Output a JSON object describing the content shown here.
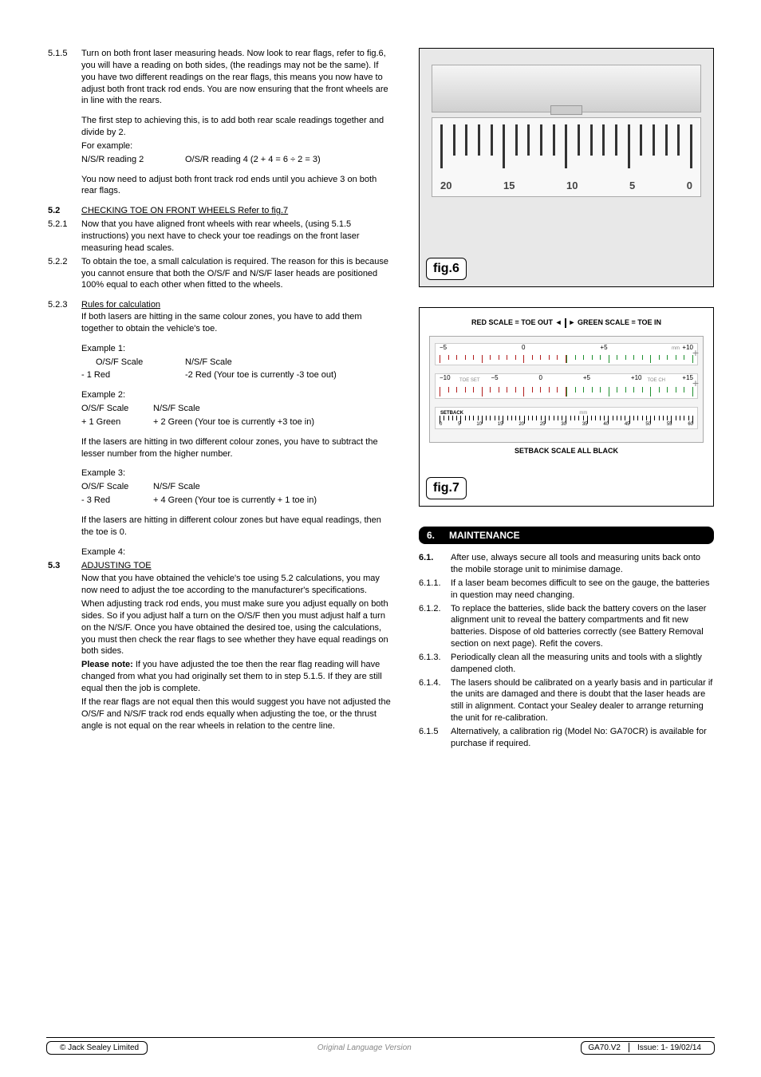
{
  "left": {
    "s515": {
      "num": "5.1.5",
      "body": "Turn on both front laser measuring heads. Now look to rear flags, refer to fig.6,  you will have a reading on both sides, (the readings may not be the same). If you have two different readings on the rear flags, this means you now have to adjust both front track rod ends. You are now ensuring that the front wheels are in line with the rears."
    },
    "s515b": "The first step to achieving this, is to add both rear scale readings together and divide by 2.",
    "s515c": "For example:",
    "s515d_left": "N/S/R reading 2",
    "s515d_right": "O/S/R reading 4 (2 + 4 = 6 ÷ 2 = 3)",
    "s515e": "You now need to adjust both front track rod ends until you achieve 3 on both rear flags.",
    "s52": {
      "num": "5.2",
      "title": "CHECKING TOE ON FRONT WHEELS Refer to fig.7"
    },
    "s521": {
      "num": "5.2.1",
      "body": "Now that you have aligned front wheels with rear wheels, (using 5.1.5 instructions) you next have to check your toe readings on the front laser measuring head scales."
    },
    "s522": {
      "num": "5.2.2",
      "body": "To obtain the toe, a small calculation is required. The reason for this is because you cannot ensure that both the O/S/F and N/S/F laser heads are positioned 100% equal to each other when fitted to the wheels."
    },
    "s523": {
      "num": "5.2.3",
      "title": "Rules for calculation",
      "body": "If both lasers are hitting in the same colour zones, you have to add them together to obtain the vehicle's toe."
    },
    "ex1_label": "Example 1:",
    "ex1_h1": "O/S/F Scale",
    "ex1_h2": "N/S/F Scale",
    "ex1_v1": "- 1 Red",
    "ex1_v2": "-2 Red (Your toe is currently -3 toe out)",
    "ex2_label": "Example 2:",
    "ex2_h1": "O/S/F Scale",
    "ex2_h2": "N/S/F Scale",
    "ex2_v1": "+ 1 Green",
    "ex2_v2": "+ 2 Green  (Your toe is currently +3 toe in)",
    "mid_para": "If the lasers are hitting in two different colour zones, you have to subtract the lesser number from the higher number.",
    "ex3_label": "Example 3:",
    "ex3_h1": "O/S/F Scale",
    "ex3_h2": "N/S/F Scale",
    "ex3_v1": "- 3 Red",
    "ex3_v2": "+ 4 Green  (Your toe is currently + 1 toe in)",
    "mid_para2": "If the lasers are hitting in different colour zones but have equal readings, then the toe is 0.",
    "ex4_label": "Example 4:",
    "s53": {
      "num": "5.3",
      "title": "ADJUSTING TOE"
    },
    "s53_p1": "Now that you have obtained the vehicle's toe using 5.2 calculations, you may now need to adjust the toe according to the manufacturer's specifications.",
    "s53_p2": "When adjusting track rod ends, you must make sure you adjust equally on both sides. So if you adjust half a turn on the O/S/F then you must adjust half a turn on the N/S/F. Once you have obtained the desired toe, using the calculations, you must then check the rear flags to see whether they have equal readings on both sides.",
    "s53_p3a": "Please note:",
    "s53_p3b": " If you have adjusted the toe then the rear flag reading will have changed from what you had originally set them to in step 5.1.5. If they are still equal then the job is complete.",
    "s53_p4": "If the rear flags are not equal then this would suggest you have not adjusted the O/S/F and N/S/F track rod ends equally when adjusting the toe, or the thrust angle is not equal on the rear wheels in relation to the centre line."
  },
  "fig6": {
    "label": "fig.6",
    "ruler_numbers": [
      "20",
      "15",
      "10",
      "5",
      "0"
    ]
  },
  "fig7": {
    "label": "fig.7",
    "legend_left": "RED SCALE = TOE OUT",
    "legend_right": "GREEN SCALE = TOE IN",
    "row1_labels": [
      "−5",
      "0",
      "+5",
      "+10"
    ],
    "row1_tiny": "mm",
    "row2_labels": [
      "−10",
      "−5",
      "0",
      "+5",
      "+10",
      "+15"
    ],
    "row2_tiny_l": "TOE SET",
    "row2_tiny_r": "TOE CH",
    "setback_label": "SETBACK",
    "setback_tiny": "mm",
    "setback_nums": [
      "0",
      "5",
      "10",
      "15",
      "20",
      "25",
      "30",
      "35",
      "40",
      "45",
      "50",
      "55",
      "60"
    ],
    "caption": "SETBACK SCALE ALL BLACK",
    "colors": {
      "red": "#b11d1d",
      "green": "#1e8f2e",
      "black": "#000000"
    }
  },
  "section6": {
    "num": "6.",
    "title": "MAINTENANCE",
    "items": [
      {
        "num": "6.1.",
        "body": "After use, always secure all tools and measuring units back onto the mobile storage unit to minimise damage."
      },
      {
        "num": "6.1.1.",
        "body": "If a laser beam becomes difficult to see on the gauge, the batteries in question may need changing."
      },
      {
        "num": "6.1.2.",
        "body": "To replace the batteries, slide back the battery covers on the laser alignment unit to reveal the battery compartments and fit new batteries. Dispose of old batteries correctly (see Battery Removal section on next page). Refit the covers."
      },
      {
        "num": "6.1.3.",
        "body": "Periodically clean all the measuring units and tools with a slightly dampened cloth."
      },
      {
        "num": "6.1.4.",
        "body": "The lasers should be calibrated on a yearly basis and in particular if the units are damaged and there is doubt that the laser heads are still in alignment. Contact your Sealey dealer to arrange returning the unit for re-calibration."
      },
      {
        "num": "6.1.5",
        "body": "Alternatively, a calibration rig (Model No: GA70CR) is available for purchase if required."
      }
    ]
  },
  "footer": {
    "left": "© Jack Sealey Limited",
    "center": "Original Language Version",
    "right_model": "GA70.V2",
    "right_issue": "Issue: 1- 19/02/14"
  }
}
